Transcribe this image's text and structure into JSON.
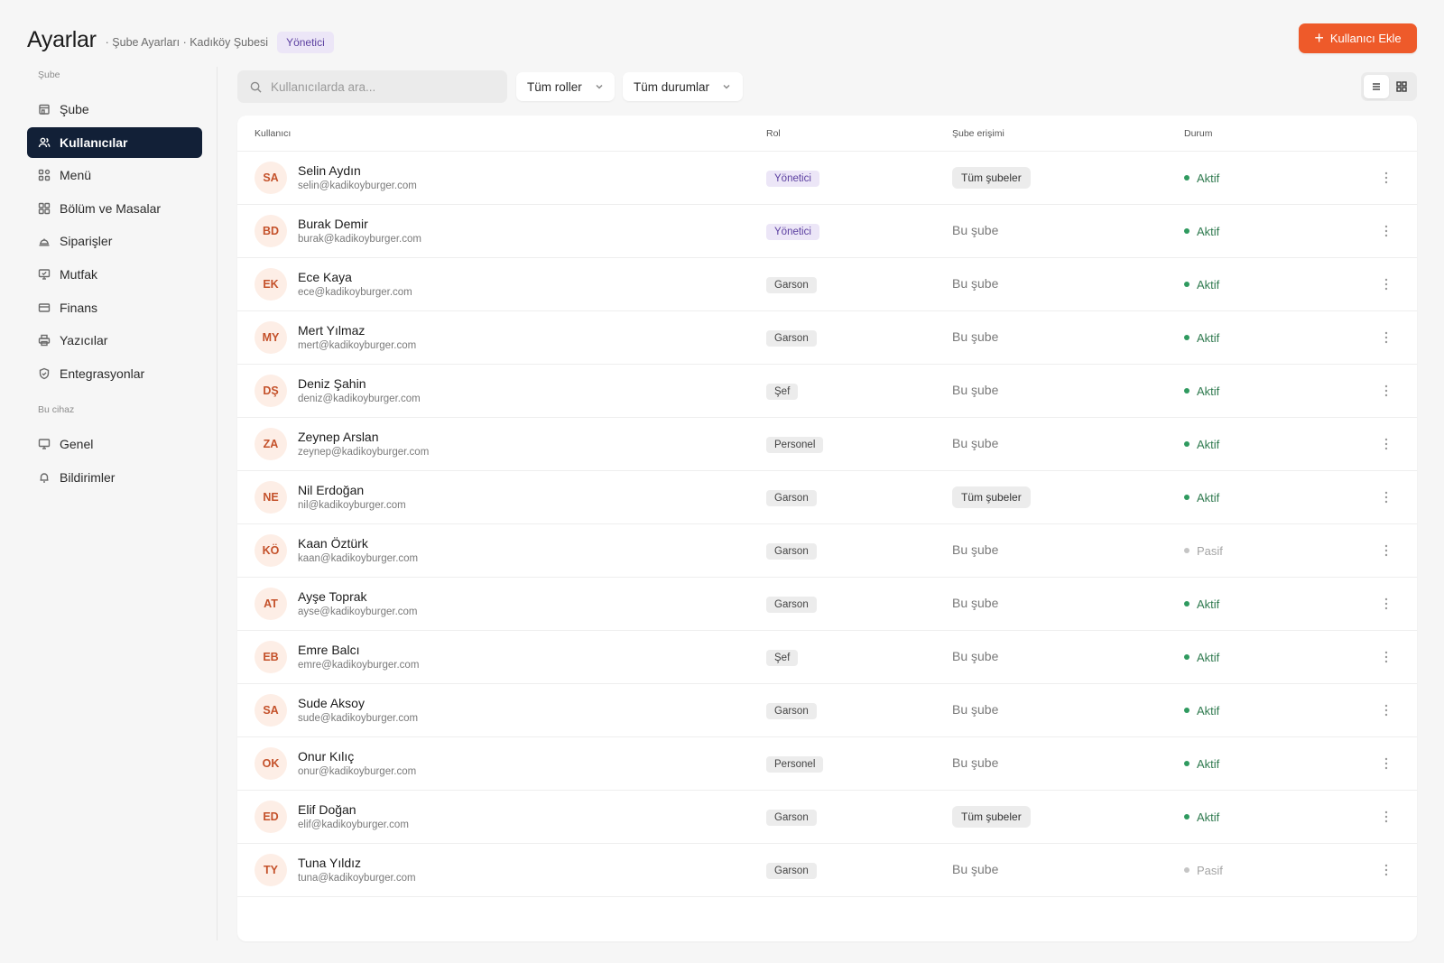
{
  "header": {
    "title": "Ayarlar",
    "breadcrumb": "· Şube Ayarları · Kadıköy Şubesi",
    "role_badge": "Yönetici",
    "add_button": "Kullanıcı Ekle",
    "add_icon": "plus-icon"
  },
  "sidebar": {
    "section_branch": "Şube",
    "section_device": "Bu cihaz",
    "items": [
      {
        "label": "Şube",
        "icon": "store-icon"
      },
      {
        "label": "Kullanıcılar",
        "icon": "users-icon",
        "active": true
      },
      {
        "label": "Menü",
        "icon": "menu-grid-icon"
      },
      {
        "label": "Bölüm ve Masalar",
        "icon": "tables-icon"
      },
      {
        "label": "Siparişler",
        "icon": "cloche-icon"
      },
      {
        "label": "Mutfak",
        "icon": "monitor-check-icon"
      },
      {
        "label": "Finans",
        "icon": "card-icon"
      },
      {
        "label": "Yazıcılar",
        "icon": "printer-icon"
      },
      {
        "label": "Entegrasyonlar",
        "icon": "shield-icon"
      }
    ],
    "device_items": [
      {
        "label": "Genel",
        "icon": "monitor-icon"
      },
      {
        "label": "Bildirimler",
        "icon": "bell-icon"
      }
    ]
  },
  "toolbar": {
    "search_placeholder": "Kullanıcılarda ara...",
    "role_filter": "Tüm roller",
    "status_filter": "Tüm durumlar",
    "view_modes": [
      "list-view-icon",
      "grid-view-icon"
    ],
    "active_view": "list"
  },
  "table": {
    "columns": [
      "Kullanıcı",
      "Rol",
      "Şube erişimi",
      "Durum"
    ],
    "rows": [
      {
        "initials": "SA",
        "name": "Selin Aydın",
        "email": "selin@kadikoyburger.com",
        "role": "Yönetici",
        "access": "Tüm şubeler",
        "status": "Aktif"
      },
      {
        "initials": "BD",
        "name": "Burak Demir",
        "email": "burak@kadikoyburger.com",
        "role": "Yönetici",
        "access": "Bu şube",
        "status": "Aktif"
      },
      {
        "initials": "EK",
        "name": "Ece Kaya",
        "email": "ece@kadikoyburger.com",
        "role": "Garson",
        "access": "Bu şube",
        "status": "Aktif"
      },
      {
        "initials": "MY",
        "name": "Mert Yılmaz",
        "email": "mert@kadikoyburger.com",
        "role": "Garson",
        "access": "Bu şube",
        "status": "Aktif"
      },
      {
        "initials": "DŞ",
        "name": "Deniz Şahin",
        "email": "deniz@kadikoyburger.com",
        "role": "Şef",
        "access": "Bu şube",
        "status": "Aktif"
      },
      {
        "initials": "ZA",
        "name": "Zeynep Arslan",
        "email": "zeynep@kadikoyburger.com",
        "role": "Personel",
        "access": "Bu şube",
        "status": "Aktif"
      },
      {
        "initials": "NE",
        "name": "Nil Erdoğan",
        "email": "nil@kadikoyburger.com",
        "role": "Garson",
        "access": "Tüm şubeler",
        "status": "Aktif"
      },
      {
        "initials": "KÖ",
        "name": "Kaan Öztürk",
        "email": "kaan@kadikoyburger.com",
        "role": "Garson",
        "access": "Bu şube",
        "status": "Pasif"
      },
      {
        "initials": "AT",
        "name": "Ayşe Toprak",
        "email": "ayse@kadikoyburger.com",
        "role": "Garson",
        "access": "Bu şube",
        "status": "Aktif"
      },
      {
        "initials": "EB",
        "name": "Emre Balcı",
        "email": "emre@kadikoyburger.com",
        "role": "Şef",
        "access": "Bu şube",
        "status": "Aktif"
      },
      {
        "initials": "SA",
        "name": "Sude Aksoy",
        "email": "sude@kadikoyburger.com",
        "role": "Garson",
        "access": "Bu şube",
        "status": "Aktif"
      },
      {
        "initials": "OK",
        "name": "Onur Kılıç",
        "email": "onur@kadikoyburger.com",
        "role": "Personel",
        "access": "Bu şube",
        "status": "Aktif"
      },
      {
        "initials": "ED",
        "name": "Elif Doğan",
        "email": "elif@kadikoyburger.com",
        "role": "Garson",
        "access": "Tüm şubeler",
        "status": "Aktif"
      },
      {
        "initials": "TY",
        "name": "Tuna Yıldız",
        "email": "tuna@kadikoyburger.com",
        "role": "Garson",
        "access": "Bu şube",
        "status": "Pasif"
      }
    ]
  },
  "colors": {
    "accent": "#ee5a2a",
    "sidebar_active": "#122037",
    "admin_badge_bg": "#ece6f7",
    "admin_badge_text": "#5b3fa0",
    "status_active": "#2f7a4f",
    "status_passive": "#a5a5a5"
  }
}
